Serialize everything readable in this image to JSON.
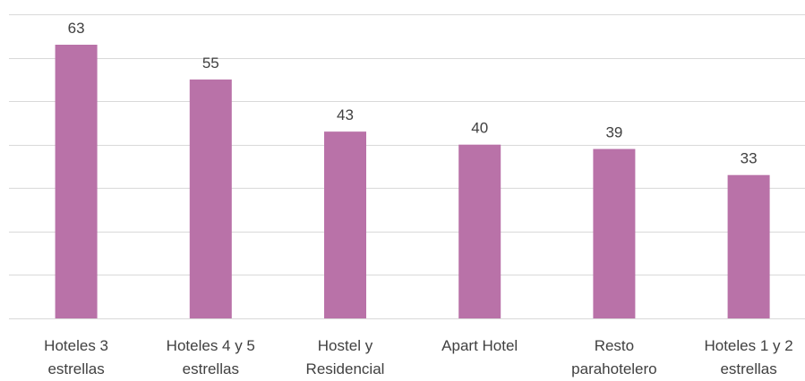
{
  "chart_data": {
    "type": "bar",
    "title": "",
    "xlabel": "",
    "ylabel": "",
    "categories": [
      [
        "Hoteles 3",
        "estrellas"
      ],
      [
        "Hoteles 4 y 5",
        "estrellas"
      ],
      [
        "Hostel y",
        "Residencial"
      ],
      [
        "Apart Hotel"
      ],
      [
        "Resto",
        "parahotelero"
      ],
      [
        "Hoteles 1 y 2",
        "estrellas"
      ]
    ],
    "values": [
      63,
      55,
      43,
      40,
      39,
      33
    ],
    "ylim": [
      0,
      70
    ],
    "grid": true,
    "bar_color": "#b972a8",
    "show_data_labels": true
  }
}
